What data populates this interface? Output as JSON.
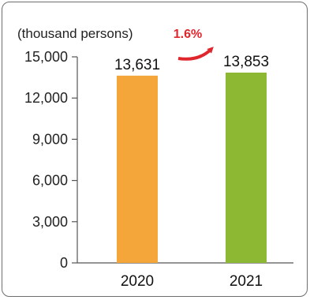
{
  "chart_data": {
    "type": "bar",
    "unit_label": "(thousand persons)",
    "categories": [
      "2020",
      "2021"
    ],
    "values": [
      13631,
      13853
    ],
    "data_labels": [
      "13,631",
      "13,853"
    ],
    "bar_colors": [
      "#f4a63a",
      "#8db834"
    ],
    "ylim": [
      0,
      15000
    ],
    "yticks": [
      "0",
      "3,000",
      "6,000",
      "9,000",
      "12,000",
      "15,000"
    ],
    "change_label": "1.6%",
    "change_color": "#e0262d",
    "grid": false
  }
}
